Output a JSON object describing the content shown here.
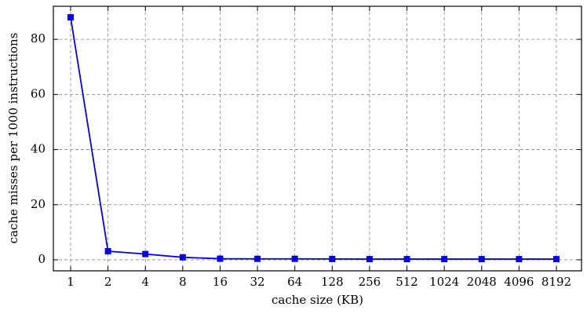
{
  "chart_data": {
    "type": "line",
    "x_label": "cache size (KB)",
    "y_label": "cache misses per 1000 instructions",
    "categories": [
      "1",
      "2",
      "4",
      "8",
      "16",
      "32",
      "64",
      "128",
      "256",
      "512",
      "1024",
      "2048",
      "4096",
      "8192"
    ],
    "series": [
      {
        "name": "cache misses",
        "color": "#0000ee",
        "values": [
          88,
          3.1,
          2.1,
          0.9,
          0.4,
          0.35,
          0.35,
          0.3,
          0.25,
          0.25,
          0.25,
          0.25,
          0.25,
          0.25
        ]
      }
    ],
    "ylim": [
      -4,
      92
    ],
    "yticks": [
      0,
      20,
      40,
      60,
      80
    ],
    "grid": true
  }
}
